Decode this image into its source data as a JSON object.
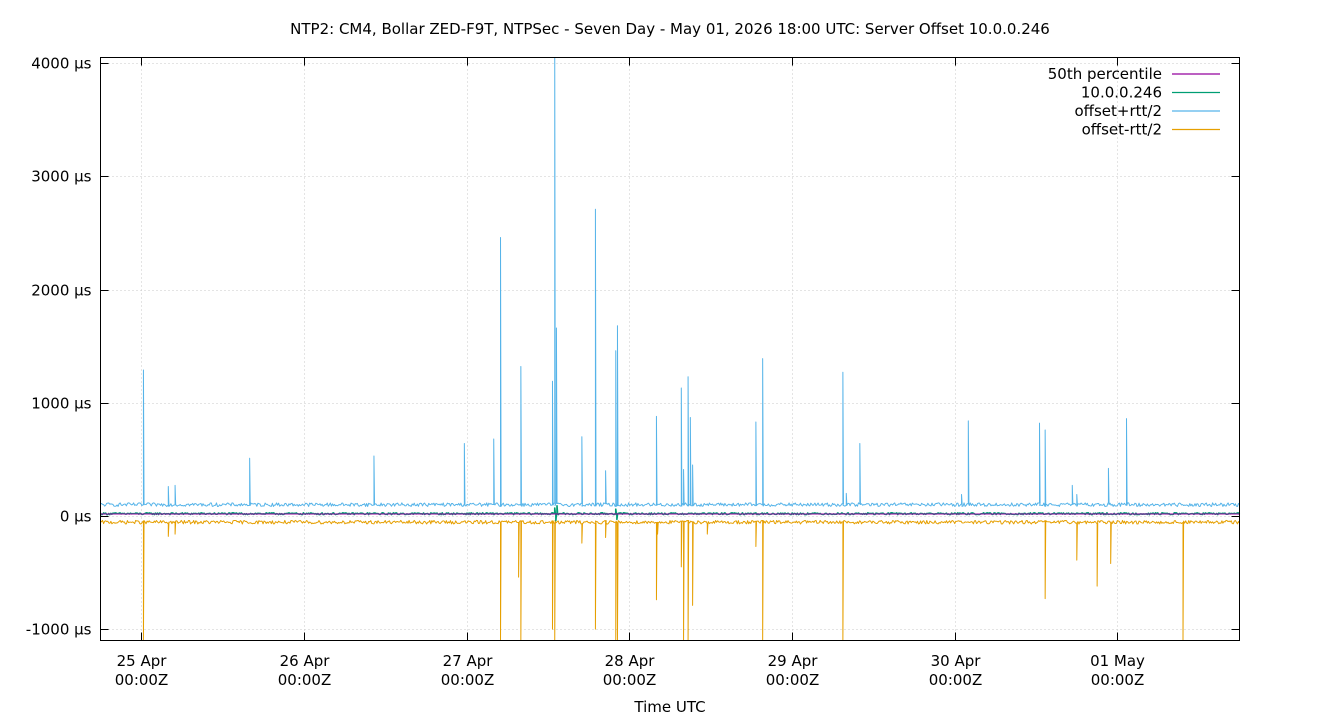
{
  "chart_data": {
    "type": "line",
    "title": "NTP2: CM4, Bollar ZED-F9T, NTPSec - Seven Day - May 01, 2026 18:00 UTC: Server Offset 10.0.0.246",
    "xlabel": "Time UTC",
    "ylabel": "",
    "y_unit": "µs",
    "xlim": [
      "2026-04-24T18:00Z",
      "2026-05-01T18:00Z"
    ],
    "ylim": [
      -1100,
      4050
    ],
    "grid": true,
    "legend_position": "top-right",
    "x_ticks": [
      {
        "date": "2026-04-25T00:00Z",
        "line1": "25 Apr",
        "line2": "00:00Z"
      },
      {
        "date": "2026-04-26T00:00Z",
        "line1": "26 Apr",
        "line2": "00:00Z"
      },
      {
        "date": "2026-04-27T00:00Z",
        "line1": "27 Apr",
        "line2": "00:00Z"
      },
      {
        "date": "2026-04-28T00:00Z",
        "line1": "28 Apr",
        "line2": "00:00Z"
      },
      {
        "date": "2026-04-29T00:00Z",
        "line1": "29 Apr",
        "line2": "00:00Z"
      },
      {
        "date": "2026-04-30T00:00Z",
        "line1": "30 Apr",
        "line2": "00:00Z"
      },
      {
        "date": "2026-05-01T00:00Z",
        "line1": "01 May",
        "line2": "00:00Z"
      }
    ],
    "y_ticks": [
      {
        "value": 4000,
        "label": "4000 µs"
      },
      {
        "value": 3000,
        "label": "3000 µs"
      },
      {
        "value": 2000,
        "label": "2000 µs"
      },
      {
        "value": 1000,
        "label": "1000 µs"
      },
      {
        "value": 0,
        "label": "0 µs"
      },
      {
        "value": -1000,
        "label": "-1000 µs"
      }
    ],
    "series": [
      {
        "name": "50th percentile",
        "color": "#94009e",
        "baseline_us": 18,
        "noise_us": 0,
        "spikes": []
      },
      {
        "name": "10.0.0.246",
        "color": "#009e73",
        "baseline_us": 20,
        "noise_us": 8,
        "spikes": [
          {
            "t": "2026-04-27T13:00Z",
            "v": 70
          },
          {
            "t": "2026-04-27T13:10Z",
            "v": -40
          },
          {
            "t": "2026-04-27T13:20Z",
            "v": 90
          },
          {
            "t": "2026-04-27T22:00Z",
            "v": 60
          },
          {
            "t": "2026-04-27T22:10Z",
            "v": -30
          }
        ]
      },
      {
        "name": "offset+rtt/2",
        "color": "#56b4e9",
        "baseline_us": 100,
        "noise_us": 16,
        "spikes": [
          {
            "t": "2026-04-25T00:20Z",
            "v": 1290
          },
          {
            "t": "2026-04-25T04:00Z",
            "v": 260
          },
          {
            "t": "2026-04-25T05:00Z",
            "v": 270
          },
          {
            "t": "2026-04-25T16:00Z",
            "v": 510
          },
          {
            "t": "2026-04-26T10:20Z",
            "v": 530
          },
          {
            "t": "2026-04-26T23:40Z",
            "v": 640
          },
          {
            "t": "2026-04-27T04:00Z",
            "v": 680
          },
          {
            "t": "2026-04-27T05:00Z",
            "v": 2460
          },
          {
            "t": "2026-04-27T08:00Z",
            "v": 1320
          },
          {
            "t": "2026-04-27T12:40Z",
            "v": 1190
          },
          {
            "t": "2026-04-27T13:00Z",
            "v": 4050
          },
          {
            "t": "2026-04-27T13:15Z",
            "v": 1660
          },
          {
            "t": "2026-04-27T17:00Z",
            "v": 700
          },
          {
            "t": "2026-04-27T19:00Z",
            "v": 2710
          },
          {
            "t": "2026-04-27T20:30Z",
            "v": 400
          },
          {
            "t": "2026-04-27T22:00Z",
            "v": 1460
          },
          {
            "t": "2026-04-27T22:15Z",
            "v": 1680
          },
          {
            "t": "2026-04-28T04:00Z",
            "v": 880
          },
          {
            "t": "2026-04-28T07:40Z",
            "v": 1130
          },
          {
            "t": "2026-04-28T08:00Z",
            "v": 410
          },
          {
            "t": "2026-04-28T08:40Z",
            "v": 1230
          },
          {
            "t": "2026-04-28T09:00Z",
            "v": 870
          },
          {
            "t": "2026-04-28T09:20Z",
            "v": 450
          },
          {
            "t": "2026-04-28T18:40Z",
            "v": 830
          },
          {
            "t": "2026-04-28T19:40Z",
            "v": 1390
          },
          {
            "t": "2026-04-29T07:30Z",
            "v": 1270
          },
          {
            "t": "2026-04-29T08:00Z",
            "v": 200
          },
          {
            "t": "2026-04-29T10:00Z",
            "v": 640
          },
          {
            "t": "2026-04-30T01:00Z",
            "v": 190
          },
          {
            "t": "2026-04-30T02:00Z",
            "v": 840
          },
          {
            "t": "2026-04-30T12:30Z",
            "v": 820
          },
          {
            "t": "2026-04-30T13:20Z",
            "v": 760
          },
          {
            "t": "2026-04-30T17:20Z",
            "v": 270
          },
          {
            "t": "2026-04-30T18:00Z",
            "v": 190
          },
          {
            "t": "2026-04-30T22:40Z",
            "v": 420
          },
          {
            "t": "2026-05-01T01:20Z",
            "v": 860
          }
        ]
      },
      {
        "name": "offset-rtt/2",
        "color": "#e69f00",
        "baseline_us": -55,
        "noise_us": 16,
        "spikes": [
          {
            "t": "2026-04-25T00:20Z",
            "v": -1100
          },
          {
            "t": "2026-04-25T04:00Z",
            "v": -180
          },
          {
            "t": "2026-04-25T05:00Z",
            "v": -160
          },
          {
            "t": "2026-04-27T05:00Z",
            "v": -1100
          },
          {
            "t": "2026-04-27T07:40Z",
            "v": -540
          },
          {
            "t": "2026-04-27T08:00Z",
            "v": -1100
          },
          {
            "t": "2026-04-27T12:40Z",
            "v": -1000
          },
          {
            "t": "2026-04-27T13:00Z",
            "v": -1100
          },
          {
            "t": "2026-04-27T17:00Z",
            "v": -240
          },
          {
            "t": "2026-04-27T19:00Z",
            "v": -1000
          },
          {
            "t": "2026-04-27T20:30Z",
            "v": -190
          },
          {
            "t": "2026-04-27T22:00Z",
            "v": -1100
          },
          {
            "t": "2026-04-27T22:15Z",
            "v": -1100
          },
          {
            "t": "2026-04-28T04:00Z",
            "v": -740
          },
          {
            "t": "2026-04-28T04:10Z",
            "v": -160
          },
          {
            "t": "2026-04-28T07:40Z",
            "v": -450
          },
          {
            "t": "2026-04-28T08:00Z",
            "v": -1100
          },
          {
            "t": "2026-04-28T08:40Z",
            "v": -1100
          },
          {
            "t": "2026-04-28T09:20Z",
            "v": -790
          },
          {
            "t": "2026-04-28T11:30Z",
            "v": -160
          },
          {
            "t": "2026-04-28T18:40Z",
            "v": -270
          },
          {
            "t": "2026-04-28T19:40Z",
            "v": -1100
          },
          {
            "t": "2026-04-29T07:30Z",
            "v": -1100
          },
          {
            "t": "2026-04-30T13:20Z",
            "v": -730
          },
          {
            "t": "2026-04-30T18:00Z",
            "v": -390
          },
          {
            "t": "2026-04-30T21:00Z",
            "v": -620
          },
          {
            "t": "2026-04-30T23:00Z",
            "v": -420
          },
          {
            "t": "2026-05-01T09:40Z",
            "v": -1100
          }
        ]
      }
    ]
  }
}
